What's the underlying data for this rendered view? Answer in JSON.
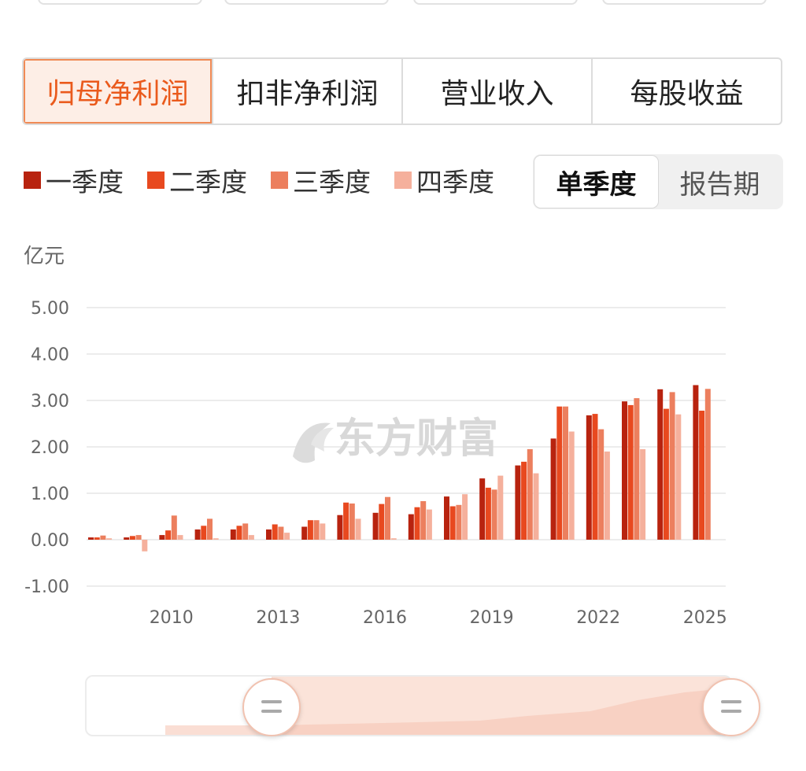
{
  "tabs": [
    {
      "label": "归母净利润",
      "active": true
    },
    {
      "label": "扣非净利润",
      "active": false
    },
    {
      "label": "营业收入",
      "active": false
    },
    {
      "label": "每股收益",
      "active": false
    }
  ],
  "legend": [
    {
      "label": "一季度",
      "color": "#b8230f"
    },
    {
      "label": "二季度",
      "color": "#e8491f"
    },
    {
      "label": "三季度",
      "color": "#ec7f5e"
    },
    {
      "label": "四季度",
      "color": "#f5b09c"
    }
  ],
  "mode": {
    "single": "单季度",
    "report": "报告期",
    "active": "single"
  },
  "watermark": "东方财富",
  "chart_data": {
    "type": "bar",
    "unit": "亿元",
    "ylim": [
      -1,
      5
    ],
    "yticks": [
      "5.00",
      "4.00",
      "3.00",
      "2.00",
      "1.00",
      "0.00",
      "-1.00"
    ],
    "ytick_values": [
      5,
      4,
      3,
      2,
      1,
      0,
      -1
    ],
    "xtick_labels": [
      "2010",
      "2013",
      "2016",
      "2019",
      "2022",
      "2025"
    ],
    "xtick_years": [
      2010,
      2013,
      2016,
      2019,
      2022,
      2025
    ],
    "categories": [
      "2008",
      "2009",
      "2010",
      "2011",
      "2012",
      "2013",
      "2014",
      "2015",
      "2016",
      "2017",
      "2018",
      "2019",
      "2020",
      "2021",
      "2022",
      "2023",
      "2024",
      "2025"
    ],
    "grid": true,
    "legend": "top-left",
    "series": [
      {
        "name": "一季度",
        "values": [
          0.05,
          0.05,
          0.1,
          0.22,
          0.22,
          0.22,
          0.28,
          0.53,
          0.58,
          0.55,
          0.93,
          1.32,
          1.6,
          2.18,
          2.68,
          2.98,
          3.24,
          3.33
        ]
      },
      {
        "name": "二季度",
        "values": [
          0.05,
          0.08,
          0.2,
          0.3,
          0.3,
          0.33,
          0.42,
          0.8,
          0.77,
          0.7,
          0.72,
          1.12,
          1.68,
          2.87,
          2.71,
          2.9,
          2.82,
          2.78
        ]
      },
      {
        "name": "三季度",
        "values": [
          0.09,
          0.1,
          0.52,
          0.45,
          0.35,
          0.28,
          0.42,
          0.78,
          0.92,
          0.83,
          0.75,
          1.08,
          1.95,
          2.87,
          2.38,
          3.05,
          3.18,
          3.25
        ]
      },
      {
        "name": "四季度",
        "values": [
          0.03,
          -0.25,
          0.1,
          0.03,
          0.1,
          0.15,
          0.35,
          0.45,
          0.03,
          0.65,
          0.98,
          1.38,
          1.43,
          2.33,
          1.9,
          1.95,
          2.7,
          null
        ]
      }
    ]
  }
}
